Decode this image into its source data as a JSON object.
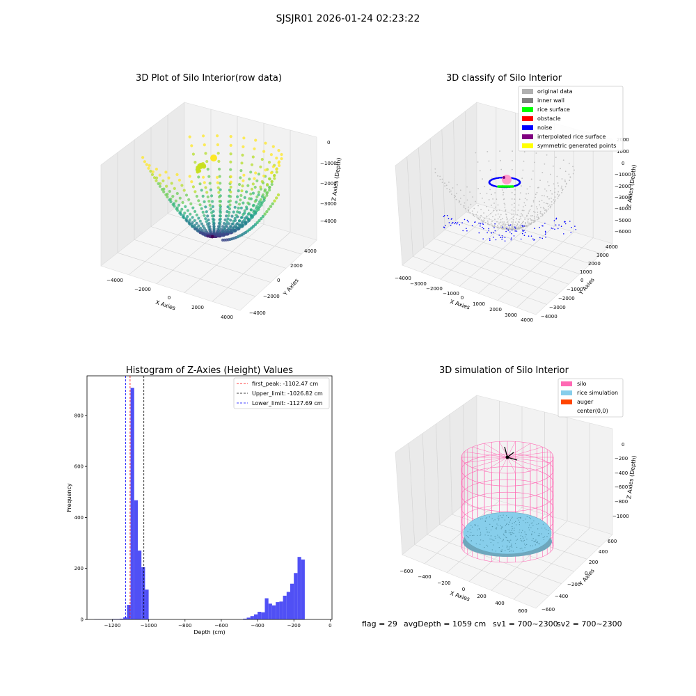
{
  "suptitle": "SJSJR01 2026-01-24 02:23:22",
  "status": {
    "flag": "flag = 29",
    "avg": "avgDepth = 1059 cm",
    "sv1": "sv1 = 700~2300",
    "sv2": "sv2 = 700~2300"
  },
  "colors": {
    "hist_bar": "#5050f5",
    "first_peak": "#ff0000",
    "upper_limit": "#000000",
    "lower_limit": "#0000ff",
    "silo": "#ff69b4",
    "rice_simulation": "#87ceeb",
    "auger": "#ff4500",
    "original": "#c0c0c0",
    "inner_wall": "#808080",
    "rice_surface": "#00ff00",
    "obstacle": "#ff0000",
    "noise": "#0000ff",
    "interpolated": "#800080",
    "symmetric": "#ffff00"
  },
  "chart_data": [
    {
      "type": "scatter",
      "subtype": "3d",
      "title": "3D Plot of Silo Interior(row data)",
      "xlabel": "X Axies",
      "ylabel": "Y Axies",
      "zlabel": "Z Axies (Depth)",
      "xticks": [
        "−4000",
        "−2000",
        "0",
        "2000",
        "4000"
      ],
      "yticks": [
        "−4000",
        "−2000",
        "0",
        "2000",
        "4000"
      ],
      "zticks": [
        "0",
        "−1000",
        "−2000",
        "−3000",
        "−4000"
      ],
      "xlim": [
        -4500,
        4500
      ],
      "ylim": [
        -4500,
        4500
      ],
      "zlim": [
        -4500,
        200
      ],
      "colormap": "viridis by depth",
      "grid": true
    },
    {
      "type": "scatter",
      "subtype": "3d",
      "title": "3D classify of Silo Interior",
      "xlabel": "X Axies",
      "ylabel": "Y Axies",
      "zlabel": "Z Axies (Depth)",
      "xticks": [
        "−4000",
        "−3000",
        "−2000",
        "−1000",
        "0",
        "1000",
        "2000",
        "3000",
        "4000"
      ],
      "yticks": [
        "−4000",
        "−3000",
        "−2000",
        "−1000",
        "0",
        "1000",
        "2000",
        "3000",
        "4000"
      ],
      "zticks": [
        "2000",
        "1000",
        "0",
        "−1000",
        "−2000",
        "−3000",
        "−4000",
        "−5000",
        "−6000"
      ],
      "xlim": [
        -4000,
        4000
      ],
      "ylim": [
        -4000,
        4000
      ],
      "zlim": [
        -6500,
        2000
      ],
      "legend": [
        "original data",
        "inner wall",
        "rice surface",
        "obstacle",
        "noise",
        "interpolated rice surface",
        "symmetric generated points"
      ],
      "legend_loc": "upper right",
      "grid": true
    },
    {
      "type": "bar",
      "subtype": "histogram",
      "title": "Histogram of Z-Axies (Height) Values",
      "xlabel": "Depth (cm)",
      "ylabel": "Frequency",
      "xlim": [
        -1340,
        10
      ],
      "ylim": [
        0,
        955
      ],
      "xticks": [
        -1200,
        -1000,
        -800,
        -600,
        -400,
        -200,
        0
      ],
      "xtick_labels": [
        "−1200",
        "−1000",
        "−800",
        "−600",
        "−400",
        "−200",
        "0"
      ],
      "yticks": [
        0,
        200,
        400,
        600,
        800
      ],
      "yticks_labels": [
        "0",
        "200",
        "400",
        "600",
        "800"
      ],
      "bin_width": 20,
      "bins": [
        {
          "x0": -1300,
          "count": 1
        },
        {
          "x0": -1280,
          "count": 1
        },
        {
          "x0": -1260,
          "count": 1
        },
        {
          "x0": -1240,
          "count": 1
        },
        {
          "x0": -1220,
          "count": 1
        },
        {
          "x0": -1200,
          "count": 2
        },
        {
          "x0": -1180,
          "count": 2
        },
        {
          "x0": -1160,
          "count": 3
        },
        {
          "x0": -1140,
          "count": 8
        },
        {
          "x0": -1120,
          "count": 57
        },
        {
          "x0": -1100,
          "count": 908
        },
        {
          "x0": -1080,
          "count": 467
        },
        {
          "x0": -1060,
          "count": 270
        },
        {
          "x0": -1040,
          "count": 205
        },
        {
          "x0": -1020,
          "count": 117
        },
        {
          "x0": -480,
          "count": 3
        },
        {
          "x0": -460,
          "count": 7
        },
        {
          "x0": -440,
          "count": 13
        },
        {
          "x0": -420,
          "count": 20
        },
        {
          "x0": -400,
          "count": 30
        },
        {
          "x0": -380,
          "count": 28
        },
        {
          "x0": -360,
          "count": 83
        },
        {
          "x0": -340,
          "count": 62
        },
        {
          "x0": -320,
          "count": 55
        },
        {
          "x0": -300,
          "count": 68
        },
        {
          "x0": -280,
          "count": 70
        },
        {
          "x0": -260,
          "count": 93
        },
        {
          "x0": -240,
          "count": 108
        },
        {
          "x0": -220,
          "count": 140
        },
        {
          "x0": -200,
          "count": 182
        },
        {
          "x0": -180,
          "count": 245
        },
        {
          "x0": -160,
          "count": 235
        }
      ],
      "vlines": [
        {
          "name": "first_peak: -1102.47 cm",
          "x": -1102.47,
          "style": "dashed",
          "color": "#ff0000"
        },
        {
          "name": "Upper_limit: -1026.82 cm",
          "x": -1026.82,
          "style": "dashed",
          "color": "#000000"
        },
        {
          "name": "Lower_limit: -1127.69 cm",
          "x": -1127.69,
          "style": "dashed",
          "color": "#0000ff"
        }
      ],
      "legend_loc": "upper right"
    },
    {
      "type": "scatter",
      "subtype": "3d",
      "title": "3D simulation of Silo Interior",
      "xlabel": "X Axies",
      "ylabel": "Y Axies",
      "zlabel": "Z Axies (Depth)",
      "xticks": [
        "−600",
        "−400",
        "−200",
        "0",
        "200",
        "400",
        "600"
      ],
      "yticks": [
        "−600",
        "−400",
        "−200",
        "0",
        "200",
        "400",
        "600"
      ],
      "zticks": [
        "0",
        "−200",
        "−400",
        "−600",
        "−800",
        "−1000"
      ],
      "xlim": [
        -600,
        600
      ],
      "ylim": [
        -600,
        600
      ],
      "zlim": [
        -1100,
        100
      ],
      "legend": [
        "silo",
        "rice simulation",
        "auger",
        "center(0,0)"
      ],
      "legend_loc": "upper right",
      "grid": true
    }
  ]
}
